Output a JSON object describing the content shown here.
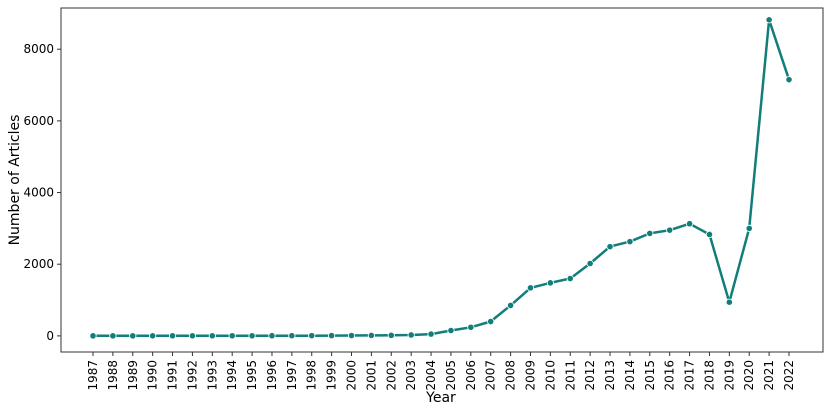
{
  "chart_data": {
    "type": "line",
    "xlabel": "Year",
    "ylabel": "Number of Articles",
    "x": [
      "1987",
      "1988",
      "1989",
      "1990",
      "1991",
      "1992",
      "1993",
      "1994",
      "1995",
      "1996",
      "1997",
      "1998",
      "1999",
      "2000",
      "2001",
      "2002",
      "2003",
      "2004",
      "2005",
      "2006",
      "2007",
      "2008",
      "2009",
      "2010",
      "2011",
      "2012",
      "2013",
      "2014",
      "2015",
      "2016",
      "2017",
      "2018",
      "2019",
      "2020",
      "2021",
      "2022"
    ],
    "series": [
      {
        "values": [
          1,
          1,
          1,
          2,
          2,
          2,
          2,
          3,
          3,
          4,
          5,
          6,
          8,
          10,
          12,
          15,
          25,
          50,
          150,
          240,
          400,
          850,
          1340,
          1480,
          1600,
          2020,
          2490,
          2630,
          2860,
          2950,
          3130,
          2830,
          940,
          3000,
          8820,
          7150
        ]
      }
    ],
    "yticks": [
      "0",
      "2000",
      "4000",
      "6000",
      "8000"
    ],
    "ylim": [
      -450,
      9150
    ],
    "grid": false,
    "legend": "none",
    "colors": {
      "line": "#117e7a",
      "marker_edge": "#ffffff"
    }
  }
}
